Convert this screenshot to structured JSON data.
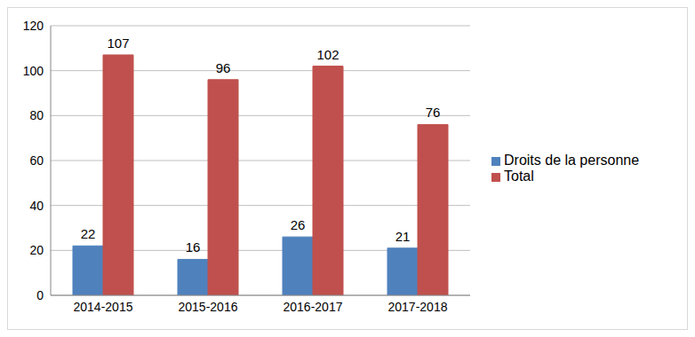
{
  "chart_data": {
    "type": "bar",
    "categories": [
      "2014-2015",
      "2015-2016",
      "2016-2017",
      "2017-2018"
    ],
    "series": [
      {
        "name": "Droits de la personne",
        "color": "#4f81bd",
        "values": [
          22,
          16,
          26,
          21
        ]
      },
      {
        "name": "Total",
        "color": "#c0504d",
        "values": [
          107,
          96,
          102,
          76
        ]
      }
    ],
    "ylim": [
      0,
      120
    ],
    "yticks": [
      0,
      20,
      40,
      60,
      80,
      100,
      120
    ],
    "grid": true,
    "legend": "right",
    "data_labels": true
  }
}
